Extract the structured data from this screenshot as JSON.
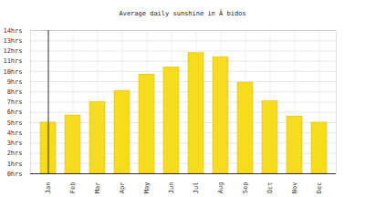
{
  "chart_data": {
    "type": "bar",
    "title": "Average daily sunshine in Ã bidos",
    "categories": [
      "Jan",
      "Feb",
      "Mar",
      "Apr",
      "May",
      "Jun",
      "Jul",
      "Aug",
      "Sep",
      "Oct",
      "Nov",
      "Dec"
    ],
    "values": [
      5,
      5.7,
      7,
      8.1,
      9.7,
      10.4,
      11.8,
      11.4,
      8.9,
      7.1,
      5.6,
      5
    ],
    "color": "#f7dc1e",
    "ylim": [
      0,
      14
    ],
    "yticks": [
      {
        "value": 0,
        "label": "0hrs"
      },
      {
        "value": 1,
        "label": "1hrs"
      },
      {
        "value": 2,
        "label": "2hrs"
      },
      {
        "value": 3,
        "label": "3hrs"
      },
      {
        "value": 4,
        "label": "4hrs"
      },
      {
        "value": 5,
        "label": "5hrs"
      },
      {
        "value": 6,
        "label": "6hrs"
      },
      {
        "value": 7,
        "label": "7hrs"
      },
      {
        "value": 8,
        "label": "8hrs"
      },
      {
        "value": 9,
        "label": "9hrs"
      },
      {
        "value": 10,
        "label": "10hrs"
      },
      {
        "value": 11,
        "label": "11hrs"
      },
      {
        "value": 12,
        "label": "12hrs"
      },
      {
        "value": 13,
        "label": "13hrs"
      },
      {
        "value": 14,
        "label": "14hrs"
      }
    ],
    "grid": true
  }
}
